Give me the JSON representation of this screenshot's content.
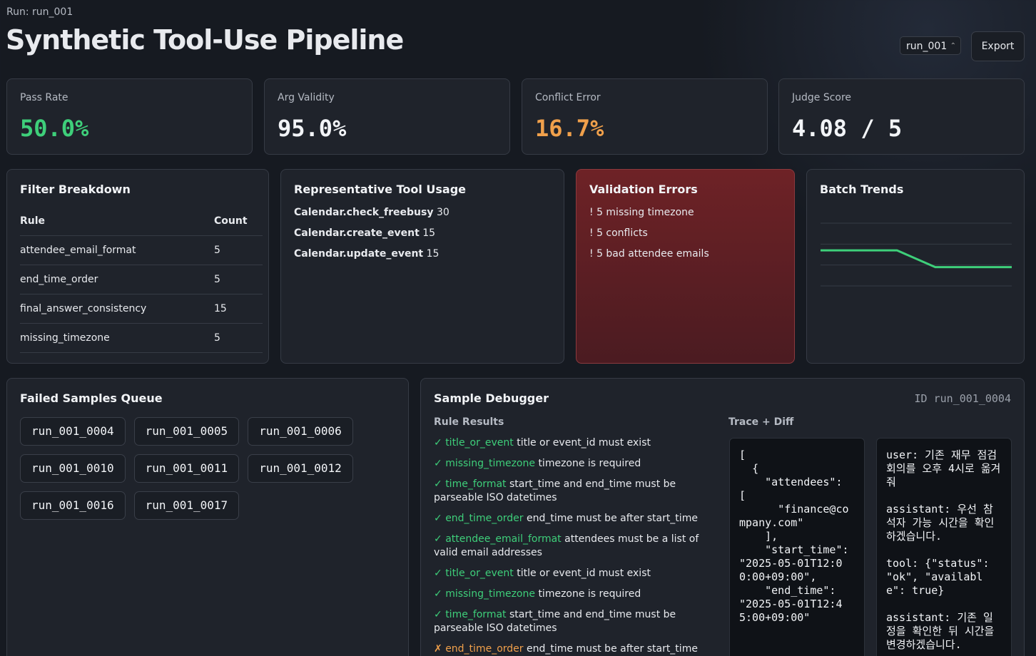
{
  "header": {
    "run_label": "Run: run_001",
    "title": "Synthetic Tool-Use Pipeline",
    "run_select": "run_001",
    "export": "Export"
  },
  "kpis": [
    {
      "label": "Pass Rate",
      "value": "50.0%",
      "color": "#3ecf7a"
    },
    {
      "label": "Arg Validity",
      "value": "95.0%",
      "color": "#f2f4f7"
    },
    {
      "label": "Conflict Error",
      "value": "16.7%",
      "color": "#f0a04b"
    },
    {
      "label": "Judge Score",
      "value": "4.08 / 5",
      "color": "#f2f4f7"
    }
  ],
  "filter_breakdown": {
    "title": "Filter Breakdown",
    "columns": [
      "Rule",
      "Count"
    ],
    "rows": [
      [
        "attendee_email_format",
        "5"
      ],
      [
        "end_time_order",
        "5"
      ],
      [
        "final_answer_consistency",
        "15"
      ],
      [
        "missing_timezone",
        "5"
      ]
    ]
  },
  "tool_usage": {
    "title": "Representative Tool Usage",
    "items": [
      {
        "name": "Calendar.check_freebusy",
        "count": "30"
      },
      {
        "name": "Calendar.create_event",
        "count": "15"
      },
      {
        "name": "Calendar.update_event",
        "count": "15"
      }
    ]
  },
  "validation_errors": {
    "title": "Validation Errors",
    "items": [
      "! 5 missing timezone",
      "! 5 conflicts",
      "! 5 bad attendee emails"
    ]
  },
  "batch_trends": {
    "title": "Batch Trends",
    "chart_data": {
      "type": "line",
      "values": [
        0.57,
        0.57,
        0.57,
        0.49,
        0.49,
        0.49
      ],
      "color": "#3ecf7a",
      "ylim": [
        0.4,
        0.7
      ],
      "yticks": [
        0.4,
        0.5,
        0.6,
        0.7
      ],
      "grid": true
    }
  },
  "failed_queue": {
    "title": "Failed Samples Queue",
    "ids": [
      "run_001_0004",
      "run_001_0005",
      "run_001_0006",
      "run_001_0010",
      "run_001_0011",
      "run_001_0012",
      "run_001_0016",
      "run_001_0017"
    ]
  },
  "debugger": {
    "title": "Sample Debugger",
    "sample_id": "ID run_001_0004",
    "rule_results_label": "Rule Results",
    "trace_label": "Trace + Diff",
    "rules": [
      {
        "mark": "✓",
        "status": "pass",
        "name": "title_or_event",
        "desc": "title or event_id must exist"
      },
      {
        "mark": "✓",
        "status": "pass",
        "name": "missing_timezone",
        "desc": "timezone is required"
      },
      {
        "mark": "✓",
        "status": "pass",
        "name": "time_format",
        "desc": "start_time and end_time must be parseable ISO datetimes"
      },
      {
        "mark": "✓",
        "status": "pass",
        "name": "end_time_order",
        "desc": "end_time must be after start_time"
      },
      {
        "mark": "✓",
        "status": "pass",
        "name": "attendee_email_format",
        "desc": "attendees must be a list of valid email addresses"
      },
      {
        "mark": "✓",
        "status": "pass",
        "name": "title_or_event",
        "desc": "title or event_id must exist"
      },
      {
        "mark": "✓",
        "status": "pass",
        "name": "missing_timezone",
        "desc": "timezone is required"
      },
      {
        "mark": "✓",
        "status": "pass",
        "name": "time_format",
        "desc": "start_time and end_time must be parseable ISO datetimes"
      },
      {
        "mark": "✗",
        "status": "fail",
        "name": "end_time_order",
        "desc": "end_time must be after start_time"
      }
    ],
    "trace_left": "[\n  {\n    \"attendees\": [\n      \"finance@company.com\"\n    ],\n    \"start_time\": \"2025-05-01T12:00:00+09:00\",\n    \"end_time\": \"2025-05-01T12:45:00+09:00\"",
    "trace_right": "user: 기존 재무 점검 회의를 오후 4시로 옮겨줘\n\nassistant: 우선 참석자 가능 시간을 확인하겠습니다.\n\ntool: {\"status\": \"ok\", \"available\": true}\n\nassistant: 기존 일정을 확인한 뒤 시간을 변경하겠습니다."
  }
}
